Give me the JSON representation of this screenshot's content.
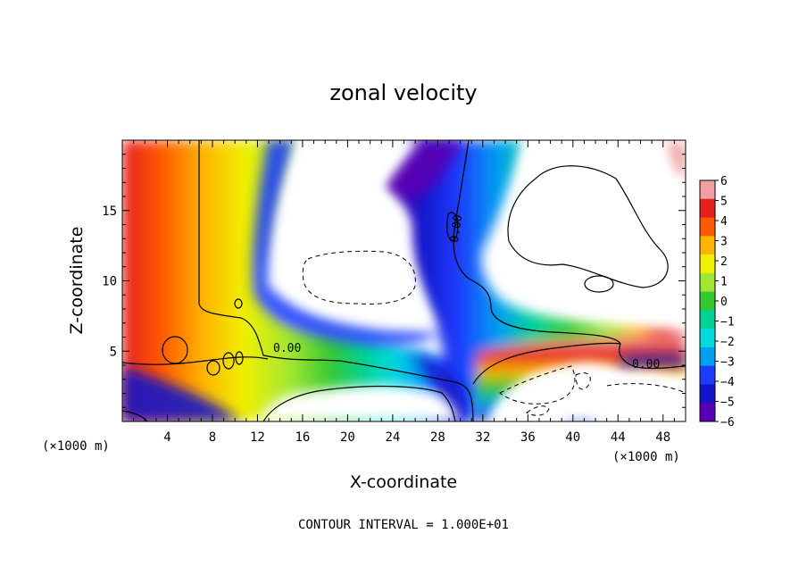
{
  "chart_data": {
    "type": "heatmap",
    "title": "zonal velocity",
    "xlabel": "X-coordinate",
    "ylabel": "Z-coordinate",
    "x_unit": "(×1000 m)",
    "xlim": [
      0,
      50
    ],
    "ylim": [
      0,
      20
    ],
    "x_ticks": [
      4,
      8,
      12,
      16,
      20,
      24,
      28,
      32,
      36,
      40,
      44,
      48
    ],
    "y_ticks": [
      5,
      10,
      15
    ],
    "colorbar": {
      "levels": [
        6,
        5,
        4,
        3,
        2,
        1,
        0,
        -1,
        -2,
        -3,
        -4,
        -5,
        -6
      ],
      "colors": [
        "#f0a0a0",
        "#e51e1e",
        "#ff5a00",
        "#ffb400",
        "#f0f000",
        "#a0e632",
        "#32c832",
        "#00d296",
        "#00dcdc",
        "#00a0f0",
        "#1e3cff",
        "#1414c8",
        "#5a00b4"
      ]
    },
    "contour_labels": [
      "0.00",
      "0.00",
      "0.00"
    ],
    "footer": "CONTOUR INTERVAL = 1.000E+01"
  }
}
